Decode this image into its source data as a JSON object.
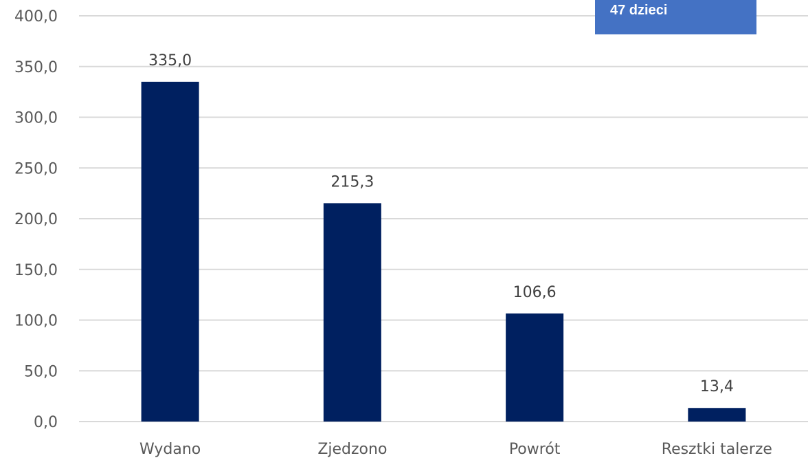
{
  "chart_data": {
    "type": "bar",
    "categories": [
      "Wydano",
      "Zjedzono",
      "Powrót",
      "Resztki talerze"
    ],
    "values": [
      335.0,
      215.3,
      106.6,
      13.4
    ],
    "data_labels": [
      "335,0",
      "215,3",
      "106,6",
      "13,4"
    ],
    "y_ticks": [
      0,
      50,
      100,
      150,
      200,
      250,
      300,
      350,
      400
    ],
    "y_tick_labels": [
      "0,0",
      "50,0",
      "100,0",
      "150,0",
      "200,0",
      "250,0",
      "300,0",
      "350,0",
      "400,0"
    ],
    "ylim": [
      0,
      400
    ],
    "grid": true,
    "bar_color": "#002060",
    "annotation": "47 dzieci",
    "annotation_color": "#4472c4"
  }
}
